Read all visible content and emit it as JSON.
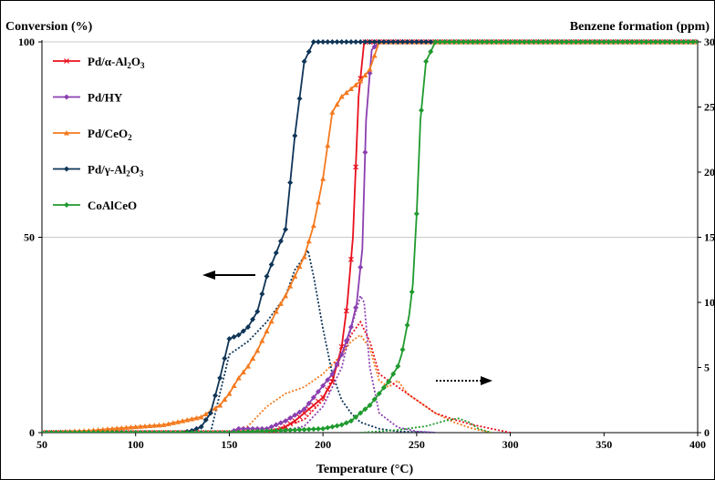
{
  "chart_data": {
    "type": "line",
    "y_title": "Conversion (%)",
    "y2_title": "Benzene formation (ppm)",
    "xlabel": "Temperature (°C)",
    "xlim": [
      50,
      400
    ],
    "ylim": [
      0,
      100
    ],
    "y2lim": [
      0,
      30
    ],
    "x_ticks": [
      "50",
      "100",
      "150",
      "200",
      "250",
      "300",
      "350",
      "400"
    ],
    "y_ticks": [
      "0",
      "50",
      "100"
    ],
    "y2_ticks": [
      "0",
      "5",
      "10",
      "15",
      "20",
      "25",
      "30"
    ],
    "grid": "horizontal at 50 and 100",
    "legend_position": "top-left",
    "annotations": [
      "left arrow: conversion curves use left axis",
      "dotted right arrow: benzene curves use right axis"
    ],
    "legend": [
      {
        "name": "Pd/α-Al",
        "sub": "2",
        "name2": "O",
        "sub2": "3",
        "color": "#e8101c",
        "marker": "x"
      },
      {
        "name": "Pd/HY",
        "sub": "",
        "name2": "",
        "sub2": "",
        "color": "#8b3fb0",
        "marker": "diamond"
      },
      {
        "name": "Pd/CeO",
        "sub": "2",
        "name2": "",
        "sub2": "",
        "color": "#f47a1f",
        "marker": "triangle"
      },
      {
        "name": "Pd/γ-Al",
        "sub": "2",
        "name2": "O",
        "sub2": "3",
        "color": "#0f3557",
        "marker": "diamond"
      },
      {
        "name": "CoAlCeO",
        "sub": "",
        "name2": "",
        "sub2": "",
        "color": "#1f9a2e",
        "marker": "diamond"
      }
    ],
    "series": [
      {
        "name": "Pd/α-Al2O3",
        "color": "#e8101c",
        "x": [
          50,
          100,
          150,
          170,
          175,
          180,
          185,
          190,
          195,
          200,
          205,
          210,
          213,
          216,
          219,
          222,
          225,
          230,
          240,
          260,
          300,
          350,
          400
        ],
        "y": [
          0,
          0,
          0,
          0,
          0.5,
          1.5,
          3,
          5,
          7,
          9,
          13,
          22,
          33,
          50,
          86,
          100,
          100,
          100,
          100,
          100,
          100,
          100,
          100
        ]
      },
      {
        "name": "Pd/HY",
        "color": "#8b3fb0",
        "x": [
          50,
          150,
          155,
          160,
          170,
          175,
          180,
          185,
          190,
          195,
          200,
          205,
          210,
          215,
          218,
          221,
          223,
          226,
          230,
          240,
          260,
          300,
          350,
          400
        ],
        "y": [
          0,
          0,
          1,
          1,
          1,
          2,
          3,
          4.5,
          6,
          9,
          12,
          15,
          20,
          27,
          33,
          47,
          80,
          98,
          100,
          100,
          100,
          100,
          100,
          100
        ]
      },
      {
        "name": "Pd/CeO2",
        "color": "#f47a1f",
        "x": [
          50,
          75,
          100,
          115,
          125,
          135,
          145,
          150,
          155,
          160,
          165,
          170,
          175,
          180,
          185,
          190,
          195,
          200,
          205,
          210,
          215,
          220,
          225,
          230,
          235,
          240,
          260,
          300,
          350,
          400
        ],
        "y": [
          0,
          0.5,
          1.5,
          2,
          3,
          4,
          7,
          10,
          14,
          17,
          21,
          26,
          31,
          35,
          40,
          45,
          53,
          65,
          82,
          86,
          88,
          90,
          93,
          100,
          100,
          100,
          100,
          100,
          100,
          100
        ]
      },
      {
        "name": "Pd/γ-Al2O3",
        "color": "#0f3557",
        "x": [
          50,
          100,
          125,
          130,
          135,
          140,
          145,
          150,
          155,
          160,
          165,
          170,
          175,
          180,
          185,
          190,
          195,
          200,
          205,
          210,
          220,
          240,
          260,
          300,
          350,
          400
        ],
        "y": [
          0,
          0,
          0,
          0.5,
          1.5,
          5,
          14,
          24,
          25,
          27,
          31,
          40,
          46,
          52,
          76,
          95,
          100,
          100,
          100,
          100,
          100,
          100,
          100,
          100,
          100,
          100
        ]
      },
      {
        "name": "CoAlCeO",
        "color": "#1f9a2e",
        "x": [
          50,
          150,
          200,
          210,
          215,
          220,
          225,
          230,
          235,
          240,
          242,
          244,
          246,
          248,
          250,
          252,
          255,
          260,
          300,
          350,
          400
        ],
        "y": [
          0,
          0,
          1,
          2,
          3,
          5,
          7,
          10,
          13,
          17,
          20,
          25,
          30,
          38,
          56,
          80,
          95,
          100,
          100,
          100,
          100
        ]
      }
    ],
    "benzene_series": [
      {
        "name": "Pd/γ-Al2O3",
        "color": "#0f3557",
        "x": [
          140,
          150,
          160,
          170,
          180,
          185,
          190,
          192,
          195,
          200,
          205,
          210,
          215,
          220,
          230,
          240,
          260
        ],
        "y": [
          0,
          6,
          7,
          8.5,
          10.5,
          12.5,
          13.5,
          14,
          12,
          8,
          4.5,
          2.5,
          1.5,
          0.8,
          0.3,
          0.1,
          0
        ]
      },
      {
        "name": "Pd/CeO2",
        "color": "#f47a1f",
        "x": [
          150,
          160,
          170,
          180,
          190,
          200,
          210,
          215,
          220,
          225,
          230,
          235,
          240,
          245,
          250,
          260,
          270,
          280,
          290
        ],
        "y": [
          0,
          0.5,
          2,
          3,
          3.5,
          4.5,
          6,
          7,
          7.5,
          6.5,
          4,
          3.5,
          4,
          3,
          2.5,
          1.5,
          0.8,
          0.3,
          0
        ]
      },
      {
        "name": "Pd/α-Al2O3",
        "color": "#e8101c",
        "x": [
          170,
          180,
          190,
          200,
          210,
          215,
          220,
          225,
          230,
          240,
          250,
          260,
          270,
          280,
          290,
          300
        ],
        "y": [
          0,
          0.5,
          1,
          2.5,
          6,
          7.5,
          8.5,
          7,
          4.5,
          3.5,
          2.5,
          1.5,
          1,
          0.6,
          0.3,
          0
        ]
      },
      {
        "name": "Pd/HY",
        "color": "#8b3fb0",
        "x": [
          175,
          190,
          200,
          210,
          215,
          220,
          222,
          225,
          230,
          240,
          250,
          260
        ],
        "y": [
          0,
          0.5,
          2,
          5,
          8,
          10.5,
          10,
          5,
          1.5,
          0.4,
          0.1,
          0
        ]
      },
      {
        "name": "CoAlCeO",
        "color": "#1f9a2e",
        "x": [
          220,
          240,
          255,
          265,
          272,
          278,
          283,
          290
        ],
        "y": [
          0,
          0.2,
          0.5,
          0.9,
          1.1,
          0.8,
          0.3,
          0
        ]
      }
    ]
  }
}
